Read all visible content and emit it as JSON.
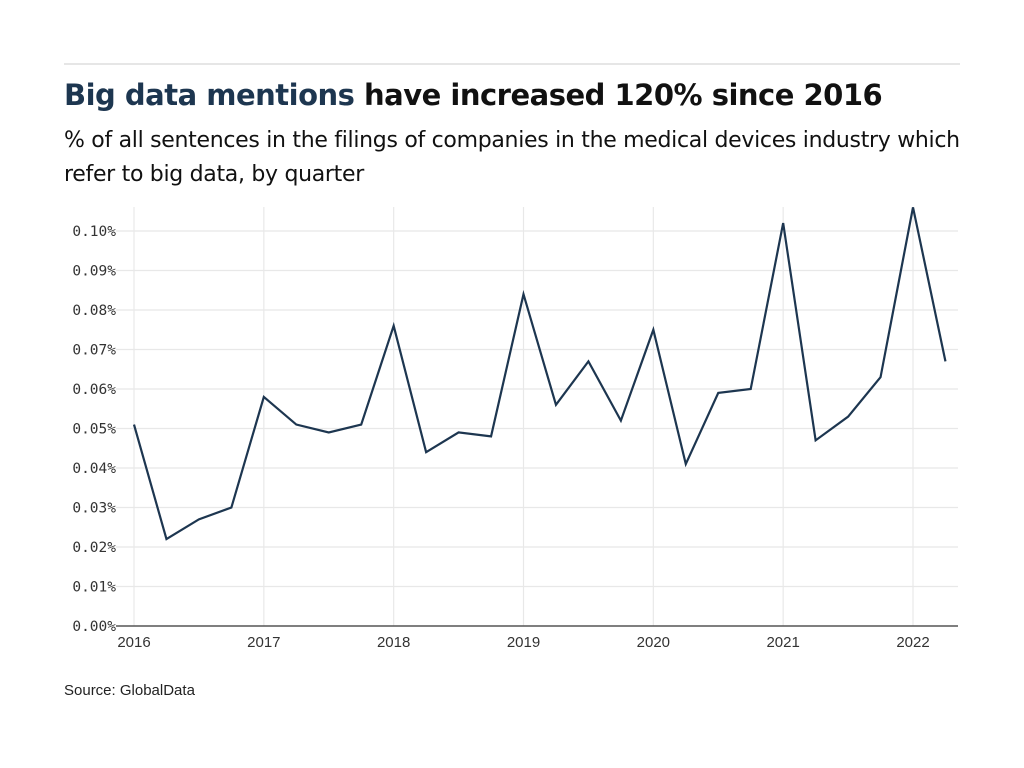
{
  "header": {
    "title_highlight": "Big data mentions",
    "title_rest": " have increased 120% since 2016",
    "subtitle": "% of all sentences in the filings of companies in the medical devices industry which refer to big data, by quarter"
  },
  "footer": {
    "source": "Source: GlobalData"
  },
  "colors": {
    "line": "#1d3650",
    "highlight": "#1d3650",
    "grid": "#e8e8e8",
    "axis": "#555555"
  },
  "chart_data": {
    "type": "line",
    "title": "Big data mentions have increased 120% since 2016",
    "subtitle": "% of all sentences in the filings of companies in the medical devices industry which refer to big data, by quarter",
    "xlabel": "",
    "ylabel": "",
    "grid": true,
    "legend": "none",
    "ylim": [
      0,
      0.1
    ],
    "yticks": [
      0,
      0.01,
      0.02,
      0.03,
      0.04,
      0.05,
      0.06,
      0.07,
      0.08,
      0.09,
      0.1
    ],
    "ytick_labels": [
      "0.00%",
      "0.01%",
      "0.02%",
      "0.03%",
      "0.04%",
      "0.05%",
      "0.06%",
      "0.07%",
      "0.08%",
      "0.09%",
      "0.10%"
    ],
    "xticks": [
      2016,
      2017,
      2018,
      2019,
      2020,
      2021,
      2022
    ],
    "xtick_labels": [
      "2016",
      "2017",
      "2018",
      "2019",
      "2020",
      "2021",
      "2022"
    ],
    "xlim": [
      2016,
      2022.35
    ],
    "series": [
      {
        "name": "Big data mentions (%)",
        "x": [
          "2016Q1",
          "2016Q2",
          "2016Q3",
          "2016Q4",
          "2017Q1",
          "2017Q2",
          "2017Q3",
          "2017Q4",
          "2018Q1",
          "2018Q2",
          "2018Q3",
          "2018Q4",
          "2019Q1",
          "2019Q2",
          "2019Q3",
          "2019Q4",
          "2020Q1",
          "2020Q2",
          "2020Q3",
          "2020Q4",
          "2021Q1",
          "2021Q2",
          "2021Q3",
          "2021Q4",
          "2022Q1",
          "2022Q2"
        ],
        "values": [
          0.051,
          0.022,
          0.027,
          0.03,
          0.058,
          0.051,
          0.049,
          0.051,
          0.076,
          0.044,
          0.049,
          0.048,
          0.084,
          0.056,
          0.067,
          0.052,
          0.075,
          0.041,
          0.059,
          0.06,
          0.102,
          0.047,
          0.053,
          0.063,
          0.106,
          0.067
        ]
      }
    ]
  }
}
